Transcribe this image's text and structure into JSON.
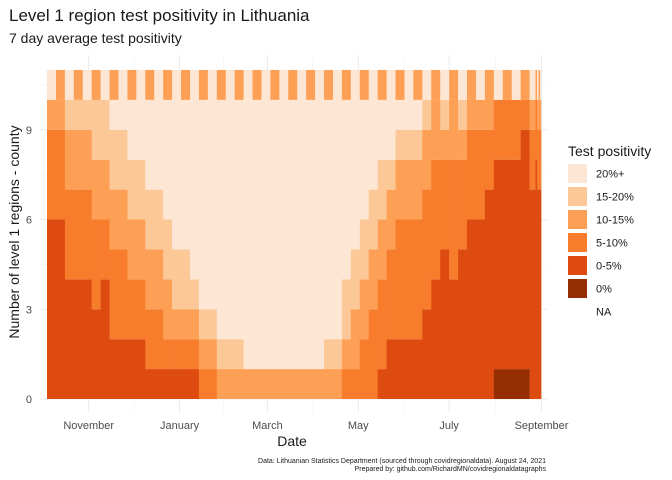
{
  "chart_data": {
    "type": "bar",
    "title": "Level 1 region test positivity in Lithuania",
    "subtitle": "7 day average test positivity",
    "xlabel": "Date",
    "ylabel": "Number of level 1 regions - county",
    "caption_line1": "Data: Lithuanian Statistics Department (sourced through covidregionaldata). August 24, 2021",
    "caption_line2": "Prepared by: github.com/RichardMN/covidregionaldatagraphs",
    "stacked": true,
    "regions_total": 10,
    "xlim": [
      "2020-10-04",
      "2021-08-31"
    ],
    "ylim": [
      0,
      11.5
    ],
    "x_ticks": [
      {
        "date": "2020-11-01",
        "label": "November"
      },
      {
        "date": "2021-01-01",
        "label": "January"
      },
      {
        "date": "2021-03-01",
        "label": "March"
      },
      {
        "date": "2021-05-01",
        "label": "May"
      },
      {
        "date": "2021-07-01",
        "label": "July"
      },
      {
        "date": "2021-09-01",
        "label": "September"
      }
    ],
    "y_ticks": [
      0,
      3,
      6,
      9
    ],
    "grid": true,
    "legend_position": "right",
    "legend_title": "Test positivity",
    "categories": [
      "0%",
      "0-5%",
      "5-10%",
      "10-15%",
      "15-20%",
      "20%+"
    ],
    "series": [
      {
        "name": "20%+",
        "color": "#fde7d4",
        "values": [
          0,
          0,
          0,
          0,
          0,
          0,
          0,
          1,
          1,
          2,
          2,
          3,
          3,
          4,
          5,
          5,
          6,
          7,
          7,
          8,
          8,
          8,
          9,
          9,
          9,
          9,
          9,
          9,
          9,
          9,
          9,
          8,
          8,
          6,
          5,
          4,
          3,
          2,
          2,
          1,
          1,
          1,
          0,
          0,
          0,
          0,
          0,
          0,
          0,
          0,
          0,
          0,
          0,
          0,
          0,
          0,
          0,
          0,
          0
        ]
      },
      {
        "name": "15-20%",
        "color": "#fdc897",
        "values": [
          0,
          0,
          1,
          1,
          1,
          2,
          2,
          2,
          2,
          2,
          2,
          2,
          2,
          2,
          2,
          2,
          1,
          1,
          1,
          1,
          1,
          1,
          0,
          0,
          0,
          0,
          0,
          0,
          0,
          0,
          0,
          1,
          1,
          2,
          2,
          2,
          2,
          2,
          1,
          1,
          1,
          1,
          1,
          0,
          1,
          0,
          1,
          0,
          0,
          0,
          0,
          0,
          0,
          0,
          0,
          0,
          0,
          0,
          0
        ]
      },
      {
        "name": "10-15%",
        "color": "#fd9f55",
        "values": [
          1,
          1,
          2,
          2,
          2,
          2,
          2,
          2,
          2,
          2,
          2,
          2,
          2,
          2,
          1,
          1,
          1,
          1,
          1,
          1,
          1,
          1,
          1,
          1,
          1,
          1,
          1,
          1,
          1,
          1,
          1,
          1,
          1,
          1,
          2,
          2,
          2,
          2,
          2,
          2,
          2,
          2,
          2,
          2,
          1,
          2,
          1,
          1,
          1,
          1,
          0,
          0,
          0,
          0,
          1,
          0,
          1,
          1,
          1
        ]
      },
      {
        "name": "5-10%",
        "color": "#f77d2c",
        "values": [
          3,
          3,
          3,
          3,
          3,
          3,
          2,
          3,
          3,
          2,
          2,
          2,
          2,
          1,
          1,
          1,
          1,
          1,
          1,
          0,
          0,
          0,
          0,
          0,
          0,
          0,
          0,
          0,
          0,
          0,
          0,
          0,
          0,
          1,
          1,
          2,
          3,
          3,
          3,
          4,
          4,
          4,
          4,
          4,
          3,
          4,
          3,
          3,
          3,
          2,
          2,
          2,
          2,
          1,
          2,
          2,
          2,
          2,
          2
        ]
      },
      {
        "name": "0-5%",
        "color": "#de4b10",
        "values": [
          6,
          6,
          4,
          4,
          4,
          3,
          4,
          2,
          2,
          2,
          2,
          1,
          1,
          1,
          1,
          1,
          1,
          0,
          0,
          0,
          0,
          0,
          0,
          0,
          0,
          0,
          0,
          0,
          0,
          0,
          0,
          0,
          0,
          0,
          0,
          0,
          0,
          1,
          2,
          2,
          2,
          2,
          3,
          4,
          5,
          4,
          5,
          6,
          6,
          7,
          7,
          7,
          7,
          8,
          7,
          8,
          7,
          7,
          7
        ]
      },
      {
        "name": "0%",
        "color": "#962e04",
        "values": [
          0,
          0,
          0,
          0,
          0,
          0,
          0,
          0,
          0,
          0,
          0,
          0,
          0,
          0,
          0,
          0,
          0,
          0,
          0,
          0,
          0,
          0,
          0,
          0,
          0,
          0,
          0,
          0,
          0,
          0,
          0,
          0,
          0,
          0,
          0,
          0,
          0,
          0,
          0,
          0,
          0,
          0,
          0,
          0,
          0,
          0,
          0,
          0,
          0,
          0,
          1,
          1,
          1,
          1,
          0,
          0,
          0,
          0,
          0
        ]
      },
      {
        "name": "NA",
        "color": "#ffffff",
        "values": [
          0,
          0,
          0,
          0,
          0,
          0,
          0,
          0,
          0,
          0,
          0,
          0,
          0,
          0,
          0,
          0,
          0,
          0,
          0,
          0,
          0,
          0,
          0,
          0,
          0,
          0,
          0,
          0,
          0,
          0,
          0,
          0,
          0,
          0,
          0,
          0,
          0,
          0,
          0,
          0,
          0,
          0,
          0,
          0,
          0,
          0,
          0,
          0,
          0,
          0,
          0,
          0,
          0,
          0,
          0,
          0,
          0,
          0,
          0
        ]
      }
    ],
    "x": [
      "2020-10-04",
      "2020-10-10",
      "2020-10-16",
      "2020-10-22",
      "2020-10-28",
      "2020-11-03",
      "2020-11-09",
      "2020-11-15",
      "2020-11-21",
      "2020-11-27",
      "2020-12-03",
      "2020-12-09",
      "2020-12-15",
      "2020-12-21",
      "2020-12-27",
      "2021-01-02",
      "2021-01-08",
      "2021-01-14",
      "2021-01-20",
      "2021-01-26",
      "2021-02-01",
      "2021-02-07",
      "2021-02-13",
      "2021-02-19",
      "2021-02-25",
      "2021-03-03",
      "2021-03-09",
      "2021-03-15",
      "2021-03-21",
      "2021-03-27",
      "2021-04-02",
      "2021-04-08",
      "2021-04-14",
      "2021-04-20",
      "2021-04-26",
      "2021-05-02",
      "2021-05-08",
      "2021-05-14",
      "2021-05-20",
      "2021-05-26",
      "2021-06-01",
      "2021-06-07",
      "2021-06-13",
      "2021-06-19",
      "2021-06-25",
      "2021-07-01",
      "2021-07-07",
      "2021-07-13",
      "2021-07-19",
      "2021-07-25",
      "2021-07-31",
      "2021-08-06",
      "2021-08-12",
      "2021-08-18",
      "2021-08-24",
      "2021-08-28",
      "2021-08-29",
      "2021-08-30",
      "2021-08-31"
    ]
  }
}
